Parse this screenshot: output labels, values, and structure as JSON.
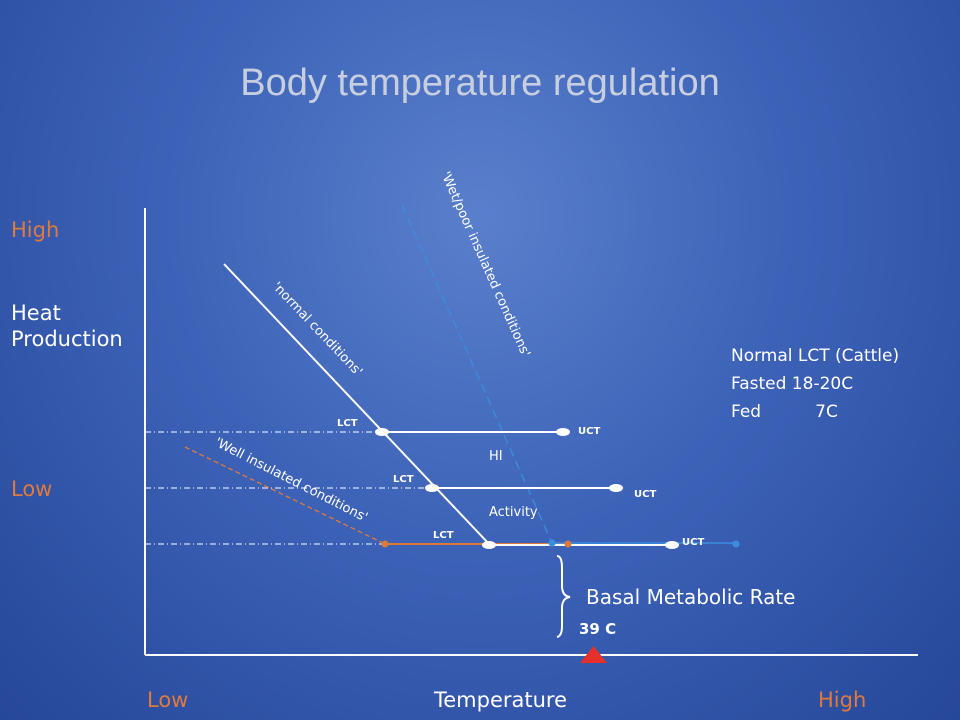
{
  "title": "Body temperature regulation",
  "y_axis": {
    "high": "High",
    "title": "Heat Production",
    "low": "Low"
  },
  "x_axis": {
    "low": "Low",
    "title": "Temperature",
    "high": "High"
  },
  "lines": {
    "normal": "'normal conditions'",
    "wet": "'Wet/poor insulated conditions'",
    "well": "'Well insulated conditions'"
  },
  "markers": {
    "lct": "LCT",
    "uct": "UCT"
  },
  "zones": {
    "hi": "HI",
    "activity": "Activity",
    "bmr": "Basal Metabolic Rate",
    "body_temp": "39 C"
  },
  "info": {
    "heading": "Normal LCT (Cattle)",
    "fasted": "Fasted 18-20C",
    "fed": "Fed          7C"
  },
  "colors": {
    "orange": "#e07a3a",
    "red_marker": "#e8302a",
    "blue_line": "#3a8ee0",
    "white": "#ffffff"
  }
}
